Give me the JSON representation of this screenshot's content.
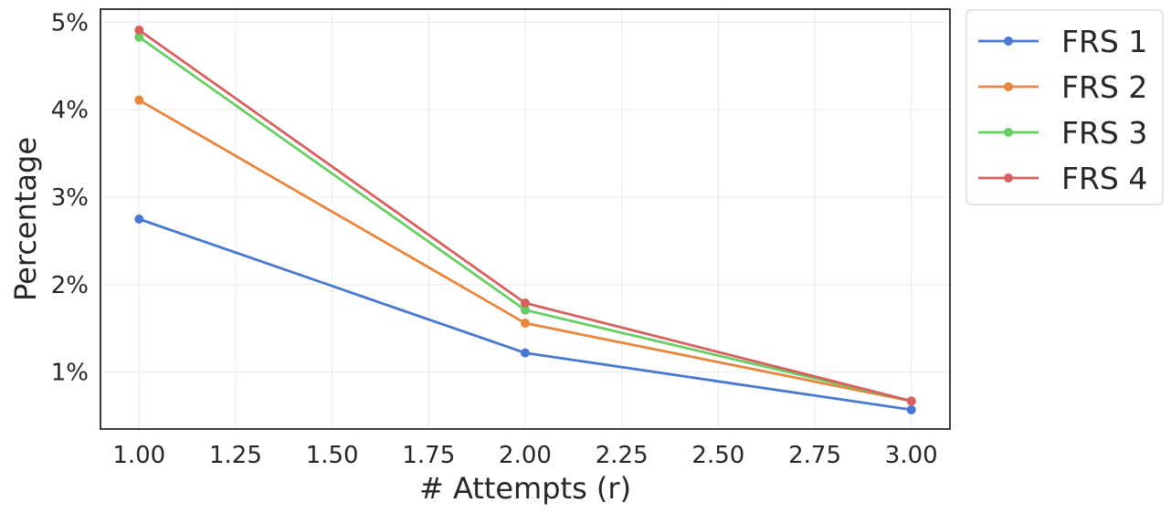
{
  "chart_data": {
    "type": "line",
    "title": "",
    "xlabel": "# Attempts (r)",
    "ylabel": "Percentage",
    "x": [
      1,
      2,
      3
    ],
    "xlim": [
      0.9,
      3.1
    ],
    "ylim": [
      0.35,
      5.15
    ],
    "xticks": [
      1.0,
      1.25,
      1.5,
      1.75,
      2.0,
      2.25,
      2.5,
      2.75,
      3.0
    ],
    "xtick_labels": [
      "1.00",
      "1.25",
      "1.50",
      "1.75",
      "2.00",
      "2.25",
      "2.50",
      "2.75",
      "3.00"
    ],
    "yticks": [
      1,
      2,
      3,
      4,
      5
    ],
    "ytick_labels": [
      "1%",
      "2%",
      "3%",
      "4%",
      "5%"
    ],
    "grid": true,
    "legend_position": "outside-top-right",
    "series": [
      {
        "name": "FRS 1",
        "color": "#4878cf",
        "values": [
          2.75,
          1.22,
          0.57
        ]
      },
      {
        "name": "FRS 2",
        "color": "#e8853e",
        "values": [
          4.11,
          1.56,
          0.67
        ]
      },
      {
        "name": "FRS 3",
        "color": "#6acc64",
        "values": [
          4.83,
          1.71,
          0.67
        ]
      },
      {
        "name": "FRS 4",
        "color": "#d65f5f",
        "values": [
          4.91,
          1.79,
          0.67
        ]
      }
    ]
  }
}
